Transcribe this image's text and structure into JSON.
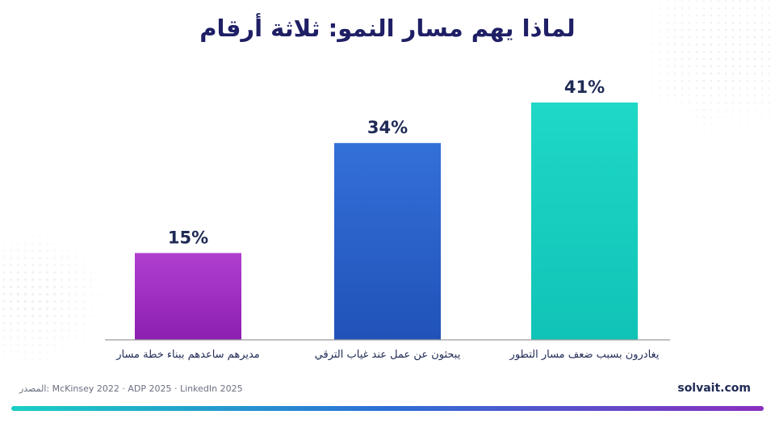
{
  "title": "لماذا يهم مسار النمو: ثلاثة أرقام",
  "chart_data": {
    "type": "bar",
    "title": "لماذا يهم مسار النمو: ثلاثة أرقام",
    "categories": [
      "مديرهم ساعدهم ببناء خطة مسار",
      "يبحثون عن عمل عند غياب الترقي",
      "يغادرون بسبب ضعف مسار التطور"
    ],
    "values": [
      15,
      34,
      41
    ],
    "value_labels": [
      "15%",
      "34%",
      "41%"
    ],
    "unit": "%",
    "ylim": [
      0,
      41
    ],
    "grid": false,
    "legend": "none",
    "colors": [
      [
        "#b03fd0",
        "#8c1fb0"
      ],
      [
        "#3370d8",
        "#2152b8"
      ],
      [
        "#1fd8c6",
        "#10c3b6"
      ]
    ]
  },
  "footer": {
    "source": "المصدر: McKinsey 2022 · ADP 2025 · LinkedIn 2025",
    "brand": "solvait.com"
  },
  "colors": {
    "title": "#1f1f66",
    "label": "#1f2a55",
    "axis": "#9a9a9a"
  }
}
